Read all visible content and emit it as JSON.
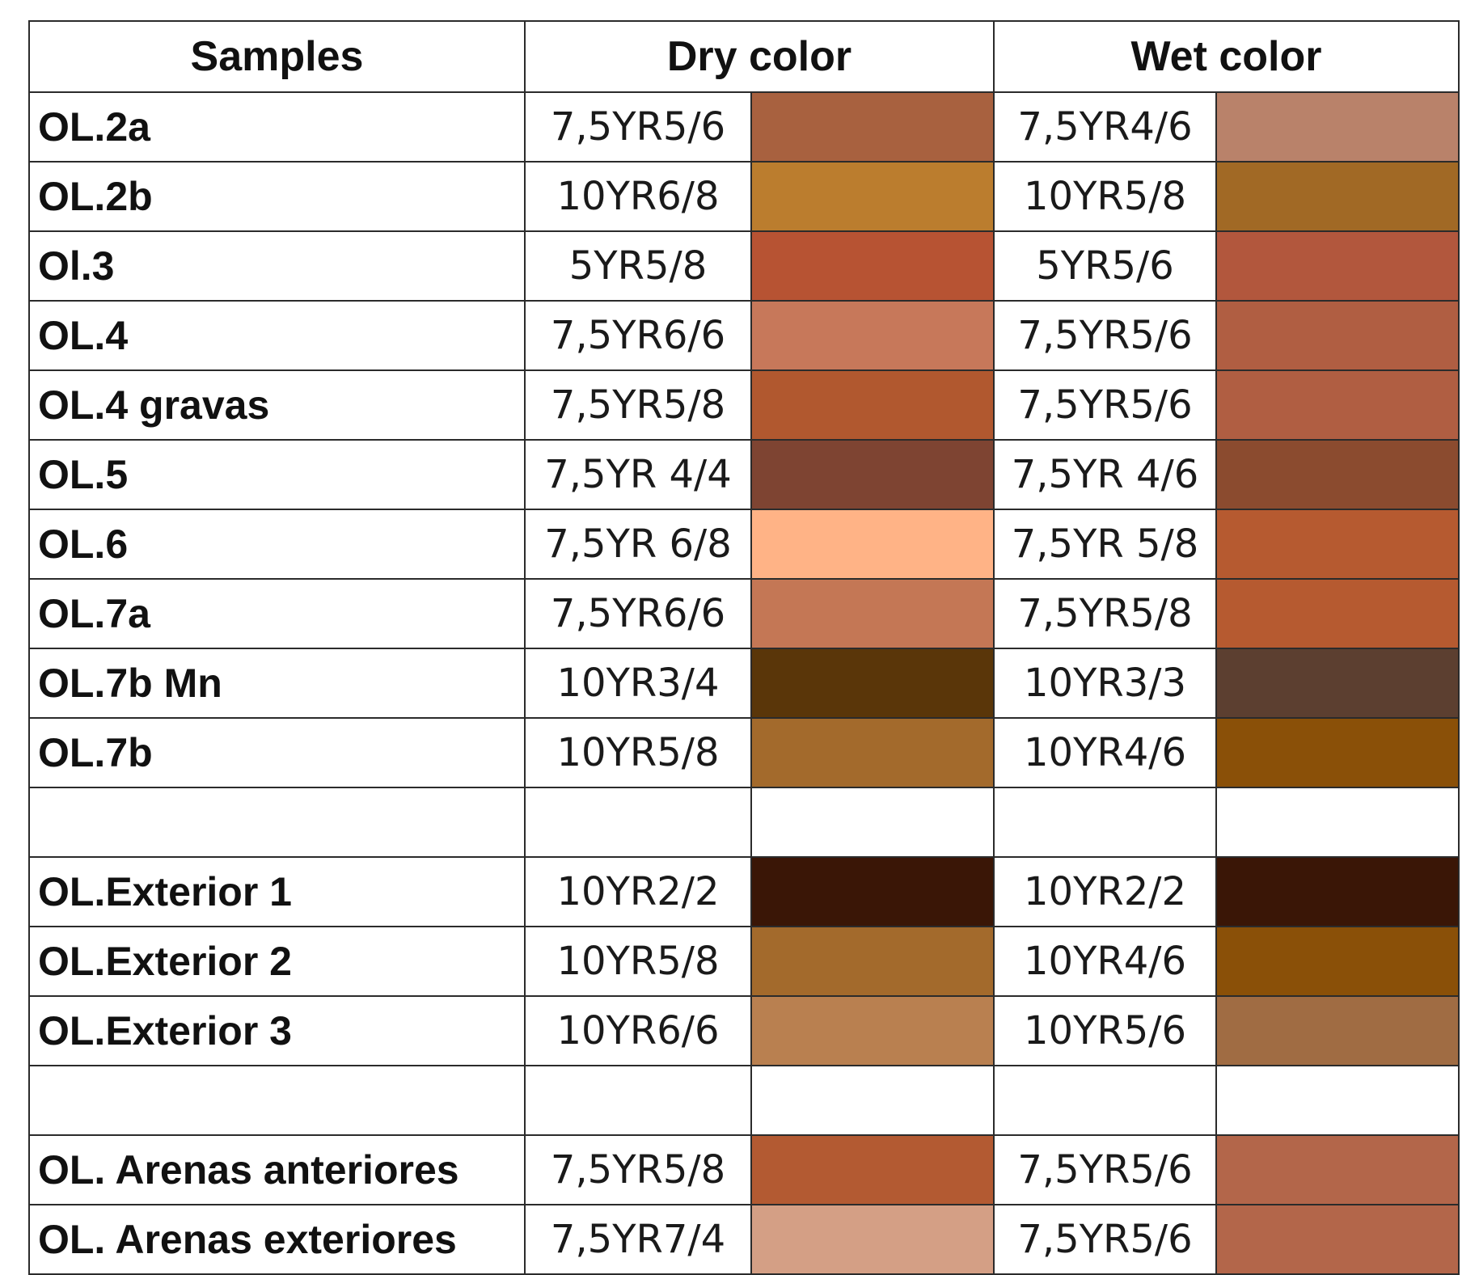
{
  "headers": {
    "samples": "Samples",
    "dry": "Dry color",
    "wet": "Wet color"
  },
  "rows": [
    {
      "sample": "OL.2a",
      "dry_code": "7,5YR5/6",
      "dry_color": "#A8613F",
      "wet_code": "7,5YR4/6",
      "wet_color": "#B9826A"
    },
    {
      "sample": "OL.2b",
      "dry_code": "10YR6/8",
      "dry_color": "#BB7D2E",
      "wet_code": "10YR5/8",
      "wet_color": "#A16925"
    },
    {
      "sample": "Ol.3",
      "dry_code": "5YR5/8",
      "dry_color": "#B75333",
      "wet_code": "5YR5/6",
      "wet_color": "#B2573D"
    },
    {
      "sample": "OL.4",
      "dry_code": "7,5YR6/6",
      "dry_color": "#C7785A",
      "wet_code": "7,5YR5/6",
      "wet_color": "#B05E42"
    },
    {
      "sample": "OL.4 gravas",
      "dry_code": "7,5YR5/8",
      "dry_color": "#B1582F",
      "wet_code": "7,5YR5/6",
      "wet_color": "#B05E42"
    },
    {
      "sample": "OL.5",
      "dry_code": "7,5YR 4/4",
      "dry_color": "#7E4432",
      "wet_code": "7,5YR 4/6",
      "wet_color": "#8B4B2F"
    },
    {
      "sample": "OL.6",
      "dry_code": "7,5YR 6/8",
      "dry_color": "#FFB386",
      "wet_code": "7,5YR 5/8",
      "wet_color": "#B65A30"
    },
    {
      "sample": "OL.7a",
      "dry_code": "7,5YR6/6",
      "dry_color": "#C47755",
      "wet_code": "7,5YR5/8",
      "wet_color": "#B65A30"
    },
    {
      "sample": "OL.7b Mn",
      "dry_code": "10YR3/4",
      "dry_color": "#5A3609",
      "wet_code": "10YR3/3",
      "wet_color": "#5C3F30"
    },
    {
      "sample": "OL.7b",
      "dry_code": "10YR5/8",
      "dry_color": "#A36A2C",
      "wet_code": "10YR4/6",
      "wet_color": "#8A5008"
    },
    {
      "sample": "",
      "dry_code": "",
      "dry_color": "",
      "wet_code": "",
      "wet_color": ""
    },
    {
      "sample": "OL.Exterior 1",
      "dry_code": "10YR2/2",
      "dry_color": "#3A1606",
      "wet_code": "10YR2/2",
      "wet_color": "#3A1606"
    },
    {
      "sample": "OL.Exterior 2",
      "dry_code": "10YR5/8",
      "dry_color": "#A36A2C",
      "wet_code": "10YR4/6",
      "wet_color": "#8A5008"
    },
    {
      "sample": "OL.Exterior 3",
      "dry_code": "10YR6/6",
      "dry_color": "#B98050",
      "wet_code": "10YR5/6",
      "wet_color": "#A06C43"
    },
    {
      "sample": "",
      "dry_code": "",
      "dry_color": "",
      "wet_code": "",
      "wet_color": ""
    },
    {
      "sample": "OL. Arenas anteriores",
      "dry_code": "7,5YR5/8",
      "dry_color": "#B35A32",
      "wet_code": "7,5YR5/6",
      "wet_color": "#B3664A"
    },
    {
      "sample": "OL. Arenas exteriores",
      "dry_code": "7,5YR7/4",
      "dry_color": "#D49F85",
      "wet_code": "7,5YR5/6",
      "wet_color": "#B3664A"
    }
  ]
}
